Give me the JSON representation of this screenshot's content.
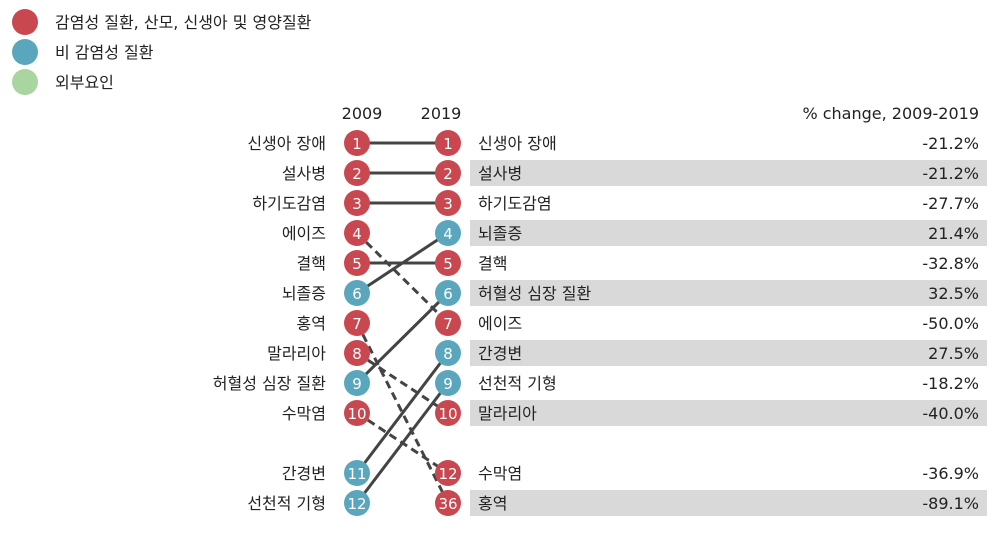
{
  "legend": [
    {
      "label": "감염성 질환, 산모, 신생아 및 영양질환",
      "color": "#c9474f"
    },
    {
      "label": "비 감염성 질환",
      "color": "#5aa7bd"
    },
    {
      "label": "외부요인",
      "color": "#a8d5a0"
    }
  ],
  "header": {
    "year_left": "2009",
    "year_right": "2019",
    "change_label": "% change, 2009-2019"
  },
  "chart_data": {
    "type": "table",
    "rows_2009": [
      {
        "rank": "1",
        "name": "신생아 장애",
        "group": "infectious"
      },
      {
        "rank": "2",
        "name": "설사병",
        "group": "infectious"
      },
      {
        "rank": "3",
        "name": "하기도감염",
        "group": "infectious"
      },
      {
        "rank": "4",
        "name": "에이즈",
        "group": "infectious"
      },
      {
        "rank": "5",
        "name": "결핵",
        "group": "infectious"
      },
      {
        "rank": "6",
        "name": "뇌졸증",
        "group": "noncommunicable"
      },
      {
        "rank": "7",
        "name": "홍역",
        "group": "infectious"
      },
      {
        "rank": "8",
        "name": "말라리아",
        "group": "infectious"
      },
      {
        "rank": "9",
        "name": "허혈성 심장 질환",
        "group": "noncommunicable"
      },
      {
        "rank": "10",
        "name": "수막염",
        "group": "infectious"
      },
      {
        "rank": "11",
        "name": "간경변",
        "group": "noncommunicable"
      },
      {
        "rank": "12",
        "name": "선천적 기형",
        "group": "noncommunicable"
      }
    ],
    "rows_2019": [
      {
        "rank": "1",
        "name": "신생아 장애",
        "group": "infectious",
        "change": "-21.2%"
      },
      {
        "rank": "2",
        "name": "설사병",
        "group": "infectious",
        "change": "-21.2%"
      },
      {
        "rank": "3",
        "name": "하기도감염",
        "group": "infectious",
        "change": "-27.7%"
      },
      {
        "rank": "4",
        "name": "뇌졸증",
        "group": "noncommunicable",
        "change": "21.4%"
      },
      {
        "rank": "5",
        "name": "결핵",
        "group": "infectious",
        "change": "-32.8%"
      },
      {
        "rank": "6",
        "name": "허혈성 심장 질환",
        "group": "noncommunicable",
        "change": "32.5%"
      },
      {
        "rank": "7",
        "name": "에이즈",
        "group": "infectious",
        "change": "-50.0%"
      },
      {
        "rank": "8",
        "name": "간경변",
        "group": "noncommunicable",
        "change": "27.5%"
      },
      {
        "rank": "9",
        "name": "선천적 기형",
        "group": "noncommunicable",
        "change": "-18.2%"
      },
      {
        "rank": "10",
        "name": "말라리아",
        "group": "infectious",
        "change": "-40.0%"
      },
      {
        "rank": "12",
        "name": "수막염",
        "group": "infectious",
        "change": "-36.9%"
      },
      {
        "rank": "36",
        "name": "홍역",
        "group": "infectious",
        "change": "-89.1%"
      }
    ],
    "links": [
      {
        "from": 1,
        "to": 1,
        "style": "solid"
      },
      {
        "from": 2,
        "to": 2,
        "style": "solid"
      },
      {
        "from": 3,
        "to": 3,
        "style": "solid"
      },
      {
        "from": 4,
        "to": 7,
        "style": "dashed"
      },
      {
        "from": 5,
        "to": 5,
        "style": "solid"
      },
      {
        "from": 6,
        "to": 4,
        "style": "solid"
      },
      {
        "from": 7,
        "to": 36,
        "style": "dashed"
      },
      {
        "from": 8,
        "to": 10,
        "style": "dashed"
      },
      {
        "from": 9,
        "to": 6,
        "style": "solid"
      },
      {
        "from": 10,
        "to": 12,
        "style": "dashed"
      },
      {
        "from": 11,
        "to": 8,
        "style": "solid"
      },
      {
        "from": 12,
        "to": 9,
        "style": "solid"
      }
    ],
    "colors": {
      "infectious": "#c9474f",
      "noncommunicable": "#5aa7bd",
      "external": "#a8d5a0",
      "stripe": "#d9d9d9",
      "line": "#444444"
    }
  }
}
